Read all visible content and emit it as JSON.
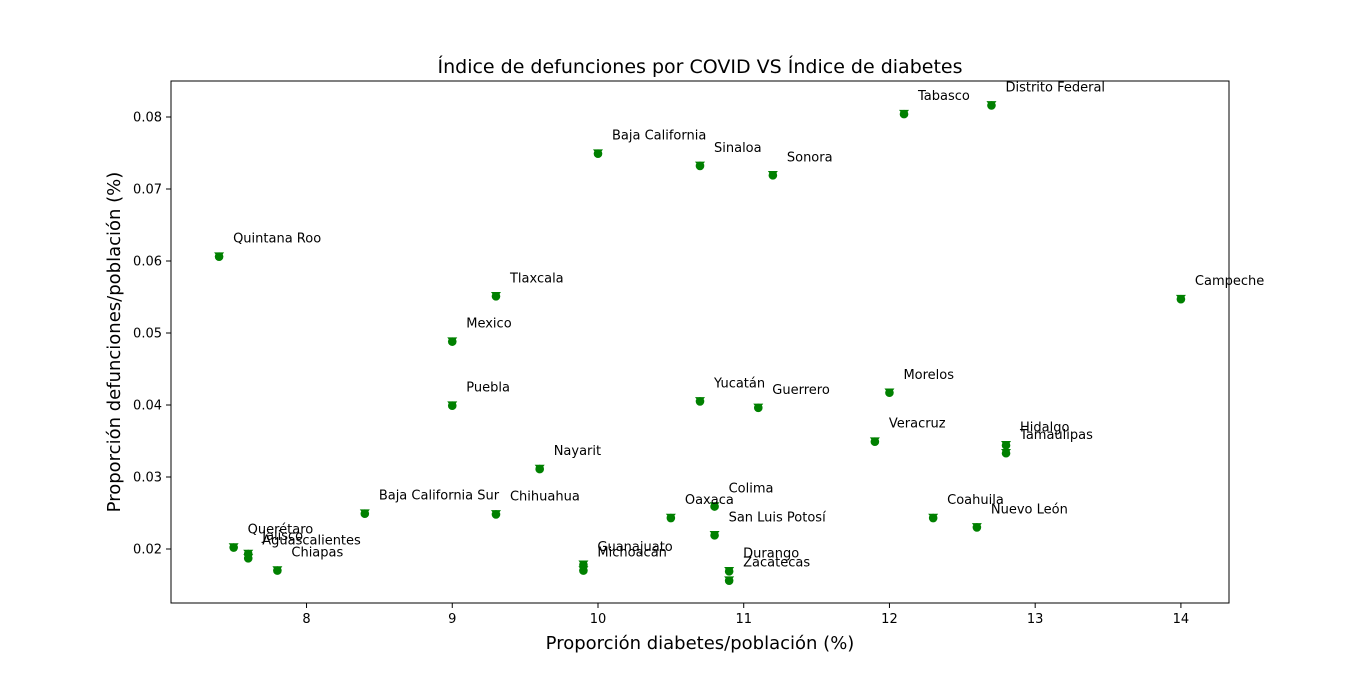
{
  "chart_data": {
    "type": "scatter",
    "title": "Índice de defunciones por COVID VS Índice de diabetes",
    "xlabel": "Proporción diabetes/población (%)",
    "ylabel": "Proporción defunciones/población (%)",
    "xlim": [
      7.07,
      14.33
    ],
    "ylim": [
      0.0125,
      0.085
    ],
    "xticks": [
      8,
      9,
      10,
      11,
      12,
      13,
      14
    ],
    "yticks": [
      0.02,
      0.03,
      0.04,
      0.05,
      0.06,
      0.07,
      0.08
    ],
    "marker_color": "#008000",
    "grid": false,
    "points": [
      {
        "label": "Distrito Federal",
        "x": 12.7,
        "y": 0.0816
      },
      {
        "label": "Tabasco",
        "x": 12.1,
        "y": 0.0804
      },
      {
        "label": "Baja California",
        "x": 10.0,
        "y": 0.0749
      },
      {
        "label": "Sinaloa",
        "x": 10.7,
        "y": 0.0732
      },
      {
        "label": "Sonora",
        "x": 11.2,
        "y": 0.0719
      },
      {
        "label": "Quintana Roo",
        "x": 7.4,
        "y": 0.0606
      },
      {
        "label": "Campeche",
        "x": 14.0,
        "y": 0.0547
      },
      {
        "label": "Tlaxcala",
        "x": 9.3,
        "y": 0.0551
      },
      {
        "label": "Mexico",
        "x": 9.0,
        "y": 0.0488
      },
      {
        "label": "Puebla",
        "x": 9.0,
        "y": 0.0399
      },
      {
        "label": "Yucatán",
        "x": 10.7,
        "y": 0.0405
      },
      {
        "label": "Guerrero",
        "x": 11.1,
        "y": 0.0396
      },
      {
        "label": "Morelos",
        "x": 12.0,
        "y": 0.0417
      },
      {
        "label": "Veracruz",
        "x": 11.9,
        "y": 0.0349
      },
      {
        "label": "Hidalgo",
        "x": 12.8,
        "y": 0.0344
      },
      {
        "label": "Tamaulipas",
        "x": 12.8,
        "y": 0.0333
      },
      {
        "label": "Nayarit",
        "x": 9.6,
        "y": 0.0311
      },
      {
        "label": "Baja California Sur",
        "x": 8.4,
        "y": 0.0249
      },
      {
        "label": "Chihuahua",
        "x": 9.3,
        "y": 0.0248
      },
      {
        "label": "Oaxaca",
        "x": 10.5,
        "y": 0.0243
      },
      {
        "label": "Colima",
        "x": 10.8,
        "y": 0.0259
      },
      {
        "label": "San Luis Potosí",
        "x": 10.8,
        "y": 0.0219
      },
      {
        "label": "Coahuila",
        "x": 12.3,
        "y": 0.0243
      },
      {
        "label": "Nuevo León",
        "x": 12.6,
        "y": 0.023
      },
      {
        "label": "Querétaro",
        "x": 7.5,
        "y": 0.0202
      },
      {
        "label": "Jalisco",
        "x": 7.6,
        "y": 0.0193
      },
      {
        "label": "Aguascalientes",
        "x": 7.6,
        "y": 0.0187
      },
      {
        "label": "Chiapas",
        "x": 7.8,
        "y": 0.017
      },
      {
        "label": "Guanajuato",
        "x": 9.9,
        "y": 0.0178
      },
      {
        "label": "Michoacán",
        "x": 9.9,
        "y": 0.017
      },
      {
        "label": "Durango",
        "x": 10.9,
        "y": 0.0169
      },
      {
        "label": "Zacatecas",
        "x": 10.9,
        "y": 0.0156
      }
    ]
  }
}
